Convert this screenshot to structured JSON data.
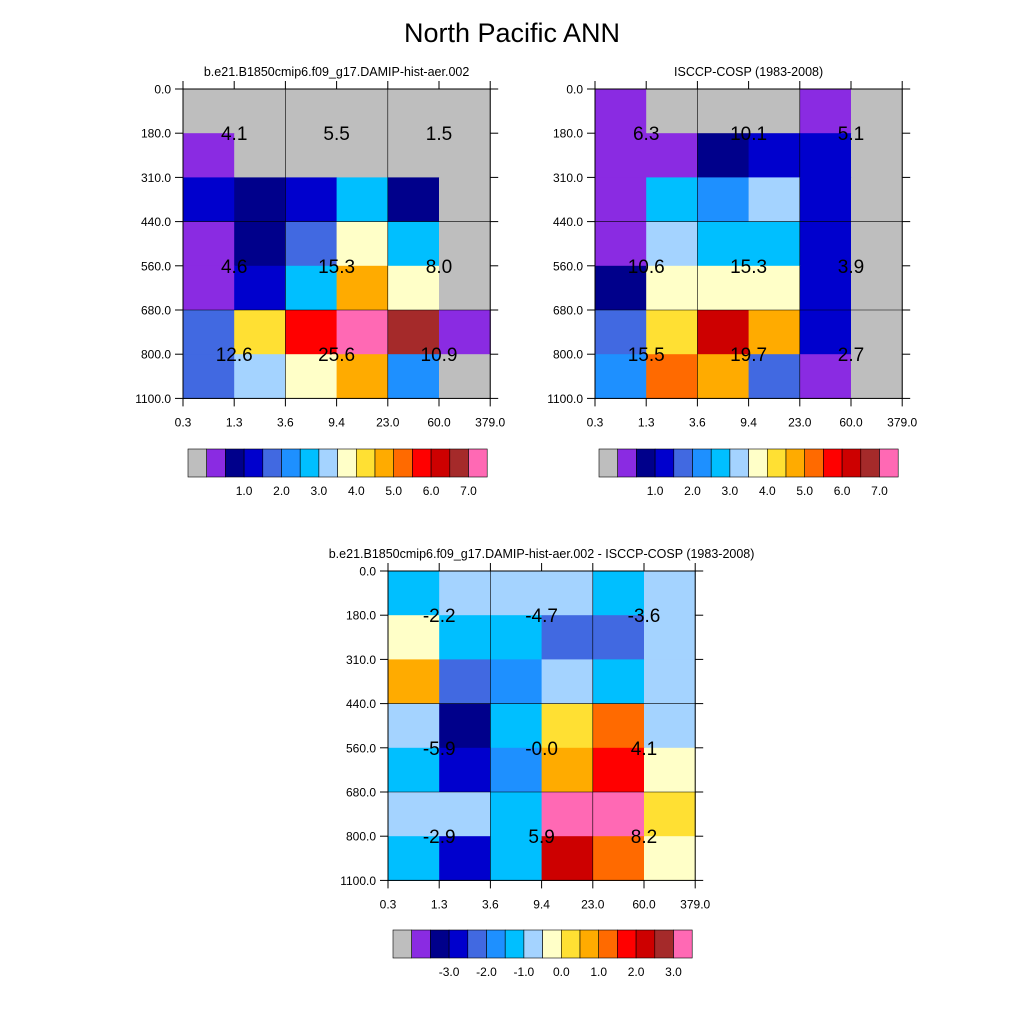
{
  "title": "North Pacific ANN",
  "chart_data": [
    {
      "type": "heatmap",
      "subtitle": "b.e21.B1850cmip6.f09_g17.DAMIP-hist-aer.002",
      "x_ticks": [
        "0.3",
        "1.3",
        "3.6",
        "9.4",
        "23.0",
        "60.0",
        "379.0"
      ],
      "y_ticks": [
        "0.0",
        "180.0",
        "310.0",
        "440.0",
        "560.0",
        "680.0",
        "800.0",
        "1100.0"
      ],
      "cell_color_index": [
        [
          0,
          0,
          0,
          0,
          0,
          0
        ],
        [
          1,
          0,
          0,
          0,
          0,
          0
        ],
        [
          3,
          2,
          3,
          6,
          2,
          0
        ],
        [
          1,
          2,
          4,
          8,
          6,
          0
        ],
        [
          1,
          3,
          6,
          10,
          8,
          0
        ],
        [
          4,
          9,
          12,
          15,
          14,
          1
        ],
        [
          4,
          7,
          8,
          10,
          5,
          0
        ]
      ],
      "block_labels": [
        [
          "4.1",
          "5.5",
          "1.5"
        ],
        [
          "4.6",
          "15.3",
          "8.0"
        ],
        [
          "12.6",
          "25.6",
          "10.9"
        ]
      ],
      "colorbar_labels": [
        "1.0",
        "2.0",
        "3.0",
        "4.0",
        "5.0",
        "6.0",
        "7.0"
      ]
    },
    {
      "type": "heatmap",
      "subtitle": "ISCCP-COSP (1983-2008)",
      "x_ticks": [
        "0.3",
        "1.3",
        "3.6",
        "9.4",
        "23.0",
        "60.0",
        "379.0"
      ],
      "y_ticks": [
        "0.0",
        "180.0",
        "310.0",
        "440.0",
        "560.0",
        "680.0",
        "800.0",
        "1100.0"
      ],
      "cell_color_index": [
        [
          1,
          0,
          0,
          0,
          1,
          0
        ],
        [
          1,
          1,
          2,
          3,
          3,
          0
        ],
        [
          1,
          6,
          5,
          7,
          3,
          0
        ],
        [
          1,
          7,
          6,
          6,
          3,
          0
        ],
        [
          2,
          8,
          8,
          8,
          3,
          0
        ],
        [
          4,
          9,
          13,
          10,
          3,
          0
        ],
        [
          5,
          11,
          10,
          4,
          1,
          0
        ]
      ],
      "block_labels": [
        [
          "6.3",
          "10.1",
          "5.1"
        ],
        [
          "10.6",
          "15.3",
          "3.9"
        ],
        [
          "15.5",
          "19.7",
          "2.7"
        ]
      ],
      "colorbar_labels": [
        "1.0",
        "2.0",
        "3.0",
        "4.0",
        "5.0",
        "6.0",
        "7.0"
      ]
    },
    {
      "type": "heatmap",
      "subtitle": "b.e21.B1850cmip6.f09_g17.DAMIP-hist-aer.002 - ISCCP-COSP (1983-2008)",
      "x_ticks": [
        "0.3",
        "1.3",
        "3.6",
        "9.4",
        "23.0",
        "60.0",
        "379.0"
      ],
      "y_ticks": [
        "0.0",
        "180.0",
        "310.0",
        "440.0",
        "560.0",
        "680.0",
        "800.0",
        "1100.0"
      ],
      "cell_color_index": [
        [
          6,
          7,
          7,
          7,
          6,
          7
        ],
        [
          8,
          6,
          6,
          4,
          4,
          7
        ],
        [
          10,
          4,
          5,
          7,
          6,
          7
        ],
        [
          7,
          2,
          6,
          9,
          11,
          7
        ],
        [
          6,
          3,
          5,
          10,
          12,
          8
        ],
        [
          7,
          7,
          6,
          15,
          15,
          9
        ],
        [
          6,
          3,
          6,
          13,
          11,
          8
        ]
      ],
      "block_labels": [
        [
          "-2.2",
          "-4.7",
          "-3.6"
        ],
        [
          "-5.9",
          "-0.0",
          "4.1"
        ],
        [
          "-2.9",
          "5.9",
          "8.2"
        ]
      ],
      "colorbar_labels": [
        "-3.0",
        "-2.0",
        "-1.0",
        "0.0",
        "1.0",
        "2.0",
        "3.0"
      ]
    }
  ],
  "colors": {
    "palette": [
      "#bebebe",
      "#8a2be2",
      "#00008b",
      "#0000cd",
      "#4169e1",
      "#1e90ff",
      "#00bfff",
      "#a4d3ff",
      "#ffffc8",
      "#ffe033",
      "#ffab00",
      "#ff6a00",
      "#ff0000",
      "#cd0000",
      "#a52a2a",
      "#ff69b4"
    ]
  }
}
